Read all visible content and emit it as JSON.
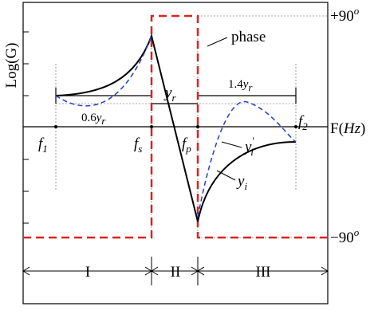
{
  "axes": {
    "y_label": "Log(G)",
    "x_label": {
      "pre": "F(",
      "var": "Hz",
      "post": ")"
    },
    "phase_top": {
      "base": "+90",
      "sup": "o"
    },
    "phase_bottom": {
      "base": "−90",
      "sup": "o"
    }
  },
  "legend": {
    "phase": "phase"
  },
  "frequencies": [
    {
      "base": "f",
      "sub": "1"
    },
    {
      "base": "f",
      "sub": "s"
    },
    {
      "base": "f",
      "sub": "p"
    },
    {
      "base": "f",
      "sub": "2"
    }
  ],
  "levels": {
    "center": {
      "base": "y",
      "sub": "r"
    },
    "left": {
      "coef": "0.6",
      "base": "y",
      "sub": "r"
    },
    "right": {
      "coef": "1.4",
      "base": "y",
      "sub": "r"
    }
  },
  "curves": {
    "yi_prime": {
      "base": "y",
      "sub": "i",
      "sup": "'"
    },
    "yi": {
      "base": "y",
      "sub": "i"
    }
  },
  "regions": [
    "I",
    "II",
    "III"
  ]
}
